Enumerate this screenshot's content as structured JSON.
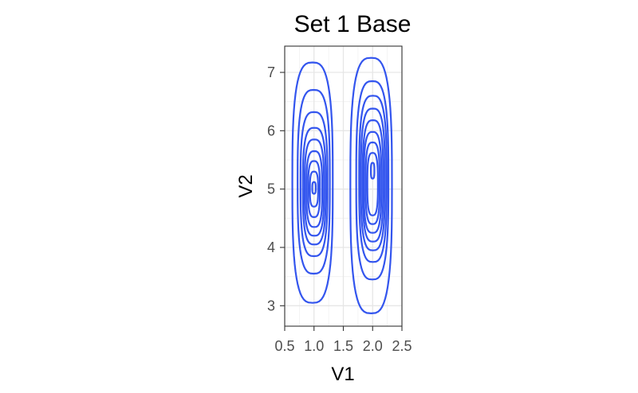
{
  "chart_data": {
    "type": "contour",
    "title": "Set 1 Base",
    "xlabel": "V1",
    "ylabel": "V2",
    "xlim": [
      0.5,
      2.5
    ],
    "ylim": [
      2.65,
      7.45
    ],
    "x_ticks": [
      0.5,
      1.0,
      1.5,
      2.0,
      2.5
    ],
    "x_tick_labels": [
      "0.5",
      "1.0",
      "1.5",
      "2.0",
      "2.5"
    ],
    "y_ticks": [
      3,
      4,
      5,
      6,
      7
    ],
    "y_tick_labels": [
      "3",
      "4",
      "5",
      "6",
      "7"
    ],
    "grid": true,
    "legend": "none",
    "line_color": "#3355ee",
    "groups": [
      {
        "center": [
          1.0,
          5.0
        ],
        "contours": [
          {
            "xmin": 0.63,
            "xmax": 1.32,
            "ymin": 3.05,
            "ymax": 7.17
          },
          {
            "xmin": 0.72,
            "xmax": 1.27,
            "ymin": 3.55,
            "ymax": 6.7
          },
          {
            "xmin": 0.77,
            "xmax": 1.23,
            "ymin": 3.85,
            "ymax": 6.32
          },
          {
            "xmin": 0.81,
            "xmax": 1.2,
            "ymin": 4.05,
            "ymax": 6.05
          },
          {
            "xmin": 0.84,
            "xmax": 1.17,
            "ymin": 4.2,
            "ymax": 5.85
          },
          {
            "xmin": 0.87,
            "xmax": 1.14,
            "ymin": 4.35,
            "ymax": 5.65
          },
          {
            "xmin": 0.9,
            "xmax": 1.1,
            "ymin": 4.52,
            "ymax": 5.48
          },
          {
            "xmin": 0.93,
            "xmax": 1.07,
            "ymin": 4.7,
            "ymax": 5.3
          },
          {
            "xmin": 0.97,
            "xmax": 1.03,
            "ymin": 4.92,
            "ymax": 5.12
          }
        ]
      },
      {
        "center": [
          2.0,
          5.3
        ],
        "contours": [
          {
            "xmin": 1.62,
            "xmax": 2.33,
            "ymin": 2.87,
            "ymax": 7.25
          },
          {
            "xmin": 1.72,
            "xmax": 2.27,
            "ymin": 3.45,
            "ymax": 6.85
          },
          {
            "xmin": 1.77,
            "xmax": 2.24,
            "ymin": 3.75,
            "ymax": 6.6
          },
          {
            "xmin": 1.8,
            "xmax": 2.21,
            "ymin": 3.95,
            "ymax": 6.38
          },
          {
            "xmin": 1.83,
            "xmax": 2.18,
            "ymin": 4.1,
            "ymax": 6.18
          },
          {
            "xmin": 1.85,
            "xmax": 2.15,
            "ymin": 4.25,
            "ymax": 5.98
          },
          {
            "xmin": 1.88,
            "xmax": 2.12,
            "ymin": 4.4,
            "ymax": 5.8
          },
          {
            "xmin": 1.91,
            "xmax": 2.09,
            "ymin": 4.55,
            "ymax": 5.62
          },
          {
            "xmin": 1.97,
            "xmax": 2.03,
            "ymin": 5.18,
            "ymax": 5.45
          }
        ]
      }
    ]
  }
}
